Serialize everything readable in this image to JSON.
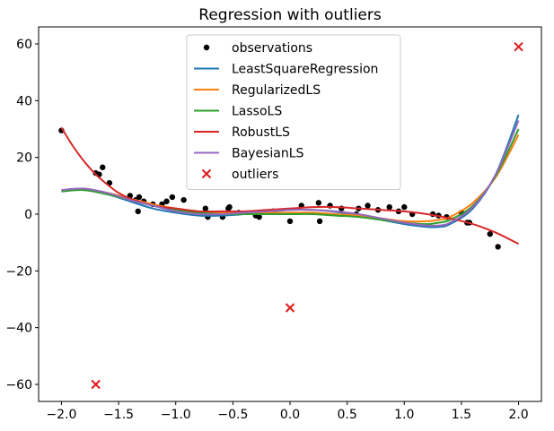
{
  "chart_data": {
    "type": "scatter",
    "title": "Regression with outliers",
    "xlabel": "",
    "ylabel": "",
    "xlim": [
      -2.2,
      2.2
    ],
    "ylim": [
      -66,
      66
    ],
    "xticks": [
      -2.0,
      -1.5,
      -1.0,
      -0.5,
      0.0,
      0.5,
      1.0,
      1.5,
      2.0
    ],
    "xtick_labels": [
      "−2.0",
      "−1.5",
      "−1.0",
      "−0.5",
      "0.0",
      "0.5",
      "1.0",
      "1.5",
      "2.0"
    ],
    "yticks": [
      -60,
      -40,
      -20,
      0,
      20,
      40,
      60
    ],
    "ytick_labels": [
      "−60",
      "−40",
      "−20",
      "0",
      "20",
      "40",
      "60"
    ],
    "grid": false,
    "legend_position": "upper-center",
    "observations": {
      "name": "observations",
      "color": "#000000",
      "x": [
        -2.0,
        -1.7,
        -1.67,
        -1.64,
        -1.58,
        -1.4,
        -1.35,
        -1.33,
        -1.32,
        -1.28,
        -1.2,
        -1.12,
        -1.08,
        -1.03,
        -0.93,
        -0.74,
        -0.72,
        -0.59,
        -0.54,
        -0.53,
        -0.45,
        -0.3,
        -0.27,
        -0.15,
        0.0,
        0.1,
        0.25,
        0.26,
        0.35,
        0.45,
        0.58,
        0.6,
        0.68,
        0.77,
        0.87,
        0.95,
        1.0,
        1.07,
        1.25,
        1.3,
        1.37,
        1.5,
        1.55,
        1.57,
        1.75,
        1.82
      ],
      "y": [
        29.5,
        14.5,
        14.0,
        16.5,
        11.0,
        6.5,
        5.0,
        1.0,
        6.0,
        4.5,
        3.5,
        3.5,
        4.5,
        6.0,
        5.0,
        2.0,
        -1.0,
        -1.0,
        2.0,
        2.5,
        0.5,
        -0.5,
        -1.0,
        1.0,
        -2.5,
        3.0,
        4.0,
        -2.5,
        3.0,
        2.0,
        0.0,
        2.0,
        3.0,
        1.5,
        2.5,
        1.0,
        2.5,
        0.0,
        0.0,
        -0.5,
        -1.0,
        0.5,
        -3.0,
        -3.0,
        -7.0,
        -11.5
      ]
    },
    "outliers": {
      "name": "outliers",
      "color": "#e31a1c",
      "x": [
        -1.7,
        0.0,
        2.0
      ],
      "y": [
        -60.0,
        -33.0,
        59.0
      ]
    },
    "series": [
      {
        "name": "LeastSquareRegression",
        "color": "#1f77b4",
        "x": [
          -2.0,
          -1.8,
          -1.6,
          -1.4,
          -1.2,
          -1.0,
          -0.8,
          -0.6,
          -0.4,
          -0.2,
          0.0,
          0.2,
          0.4,
          0.6,
          0.8,
          1.0,
          1.2,
          1.3,
          1.4,
          1.6,
          1.8,
          2.0
        ],
        "y": [
          8.5,
          8.5,
          7.0,
          4.5,
          2.0,
          0.5,
          -0.5,
          -0.5,
          0.0,
          0.8,
          1.5,
          1.5,
          0.8,
          -0.5,
          -2.0,
          -3.5,
          -4.5,
          -4.5,
          -3.5,
          2.0,
          14.0,
          35.0
        ]
      },
      {
        "name": "RegularizedLS",
        "color": "#ff7f0e",
        "x": [
          -2.0,
          -1.8,
          -1.6,
          -1.4,
          -1.2,
          -1.0,
          -0.8,
          -0.6,
          -0.4,
          -0.2,
          0.0,
          0.2,
          0.4,
          0.6,
          0.8,
          1.0,
          1.2,
          1.3,
          1.4,
          1.6,
          1.8,
          2.0
        ],
        "y": [
          8.5,
          8.5,
          7.5,
          5.5,
          3.5,
          2.0,
          1.0,
          0.5,
          0.5,
          0.5,
          0.5,
          0.5,
          0.0,
          -0.5,
          -1.5,
          -2.5,
          -2.5,
          -2.0,
          -1.0,
          4.0,
          13.0,
          28.0
        ]
      },
      {
        "name": "LassoLS",
        "color": "#2ca02c",
        "x": [
          -2.0,
          -1.8,
          -1.6,
          -1.4,
          -1.2,
          -1.0,
          -0.8,
          -0.6,
          -0.4,
          -0.2,
          0.0,
          0.2,
          0.4,
          0.6,
          0.8,
          1.0,
          1.2,
          1.3,
          1.4,
          1.6,
          1.8,
          2.0
        ],
        "y": [
          8.0,
          8.5,
          7.0,
          5.0,
          3.0,
          1.5,
          0.5,
          0.0,
          0.0,
          0.0,
          0.0,
          0.0,
          -0.5,
          -1.0,
          -2.0,
          -3.0,
          -3.5,
          -3.0,
          -2.0,
          3.0,
          13.5,
          30.0
        ]
      },
      {
        "name": "RobustLS",
        "color": "#d62728",
        "x": [
          -2.0,
          -1.9,
          -1.8,
          -1.7,
          -1.6,
          -1.5,
          -1.4,
          -1.2,
          -1.0,
          -0.8,
          -0.6,
          -0.4,
          -0.2,
          0.0,
          0.2,
          0.4,
          0.6,
          0.8,
          1.0,
          1.2,
          1.4,
          1.6,
          1.8,
          2.0
        ],
        "y": [
          30.5,
          24.0,
          18.5,
          14.0,
          10.5,
          7.5,
          5.5,
          3.0,
          2.0,
          1.0,
          1.0,
          1.0,
          1.5,
          2.0,
          2.5,
          2.5,
          2.0,
          1.5,
          1.0,
          0.0,
          -1.5,
          -3.5,
          -6.5,
          -10.5
        ]
      },
      {
        "name": "BayesianLS",
        "color": "#9467bd",
        "x": [
          -2.0,
          -1.8,
          -1.6,
          -1.4,
          -1.2,
          -1.0,
          -0.8,
          -0.6,
          -0.4,
          -0.2,
          0.0,
          0.2,
          0.4,
          0.6,
          0.8,
          1.0,
          1.2,
          1.3,
          1.4,
          1.6,
          1.8,
          2.0
        ],
        "y": [
          8.5,
          9.0,
          7.5,
          5.0,
          3.0,
          1.0,
          0.0,
          0.0,
          0.5,
          1.0,
          1.5,
          1.5,
          1.0,
          0.0,
          -1.5,
          -3.0,
          -4.0,
          -4.0,
          -3.0,
          2.5,
          14.0,
          33.0
        ]
      }
    ]
  }
}
